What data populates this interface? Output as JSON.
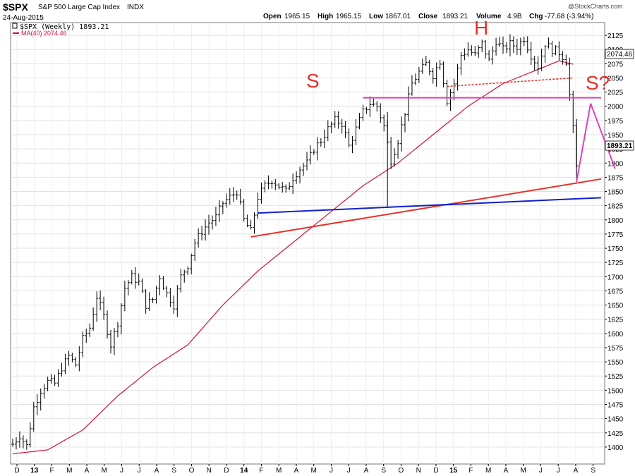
{
  "header": {
    "symbol": "$SPX",
    "name": "S&P 500 Large Cap Index",
    "exchange": "INDX",
    "date": "24-Aug-2015",
    "open_label": "Open",
    "open": "1965.15",
    "high_label": "High",
    "high": "1965.15",
    "low_label": "Low",
    "low": "1867.01",
    "close_label": "Close",
    "close": "1893.21",
    "volume_label": "Volume",
    "volume": "4.9B",
    "chg_label": "Chg",
    "chg": "-77.68 (-3.94%)",
    "watermark": "@StockCharts.com"
  },
  "legend": {
    "price_label": "$SPX (Weekly) 1893.21",
    "ma_label": "MA(40) 2074.46"
  },
  "price_tags": {
    "ma": "2074.46",
    "close": "1893.21"
  },
  "annotations": {
    "left_shoulder": "S",
    "head": "H",
    "right_shoulder": "S?"
  },
  "colors": {
    "bars": "#000000",
    "ma": "#d0103a",
    "trend_red": "#e8322a",
    "trend_blue": "#1020d0",
    "neckline": "#e040c0",
    "annotation": "#e8322a"
  },
  "chart_data": {
    "type": "ohlc-line",
    "title": "$SPX S&P 500 Large Cap Index INDX",
    "period": "Weekly",
    "y_range": [
      1380,
      2140
    ],
    "y_ticks": [
      1400,
      1425,
      1450,
      1475,
      1500,
      1525,
      1550,
      1575,
      1600,
      1625,
      1650,
      1675,
      1700,
      1725,
      1750,
      1775,
      1800,
      1825,
      1850,
      1875,
      1900,
      1925,
      1950,
      1975,
      2000,
      2025,
      2050,
      2075,
      2100,
      2125
    ],
    "x_ticks": [
      "D",
      "13",
      "F",
      "M",
      "A",
      "M",
      "J",
      "J",
      "A",
      "S",
      "O",
      "N",
      "D",
      "14",
      "F",
      "M",
      "A",
      "M",
      "J",
      "J",
      "A",
      "S",
      "O",
      "N",
      "D",
      "15",
      "F",
      "M",
      "A",
      "M",
      "J",
      "J",
      "A",
      "S"
    ],
    "price_keypoints": [
      [
        0,
        1405
      ],
      [
        2,
        1420
      ],
      [
        4,
        1402
      ],
      [
        6,
        1470
      ],
      [
        8,
        1500
      ],
      [
        10,
        1515
      ],
      [
        12,
        1512
      ],
      [
        14,
        1540
      ],
      [
        16,
        1560
      ],
      [
        18,
        1545
      ],
      [
        20,
        1590
      ],
      [
        22,
        1610
      ],
      [
        24,
        1665
      ],
      [
        26,
        1630
      ],
      [
        28,
        1580
      ],
      [
        30,
        1620
      ],
      [
        32,
        1680
      ],
      [
        34,
        1700
      ],
      [
        36,
        1690
      ],
      [
        38,
        1650
      ],
      [
        40,
        1660
      ],
      [
        42,
        1700
      ],
      [
        44,
        1670
      ],
      [
        46,
        1650
      ],
      [
        48,
        1700
      ],
      [
        50,
        1720
      ],
      [
        52,
        1760
      ],
      [
        54,
        1780
      ],
      [
        56,
        1795
      ],
      [
        58,
        1805
      ],
      [
        60,
        1830
      ],
      [
        62,
        1840
      ],
      [
        64,
        1850
      ],
      [
        66,
        1800
      ],
      [
        68,
        1780
      ],
      [
        70,
        1840
      ],
      [
        72,
        1860
      ],
      [
        74,
        1870
      ],
      [
        76,
        1860
      ],
      [
        78,
        1850
      ],
      [
        80,
        1875
      ],
      [
        82,
        1890
      ],
      [
        84,
        1900
      ],
      [
        86,
        1925
      ],
      [
        88,
        1940
      ],
      [
        90,
        1960
      ],
      [
        92,
        1975
      ],
      [
        94,
        1970
      ],
      [
        96,
        1930
      ],
      [
        98,
        1960
      ],
      [
        100,
        1990
      ],
      [
        102,
        2005
      ],
      [
        104,
        2000
      ],
      [
        106,
        1965
      ],
      [
        108,
        1905
      ],
      [
        110,
        1940
      ],
      [
        112,
        1990
      ],
      [
        114,
        2040
      ],
      [
        116,
        2060
      ],
      [
        118,
        2075
      ],
      [
        120,
        2055
      ],
      [
        122,
        2080
      ],
      [
        124,
        2010
      ],
      [
        126,
        2040
      ],
      [
        128,
        2090
      ],
      [
        130,
        2100
      ],
      [
        132,
        2090
      ],
      [
        134,
        2110
      ],
      [
        136,
        2080
      ],
      [
        138,
        2115
      ],
      [
        140,
        2100
      ],
      [
        142,
        2110
      ],
      [
        144,
        2105
      ],
      [
        146,
        2120
      ],
      [
        148,
        2090
      ],
      [
        150,
        2070
      ],
      [
        152,
        2110
      ],
      [
        154,
        2100
      ],
      [
        156,
        2095
      ],
      [
        158,
        2080
      ],
      [
        160,
        1960
      ],
      [
        161,
        1893
      ]
    ],
    "ma40_keypoints": [
      [
        0,
        1388
      ],
      [
        10,
        1395
      ],
      [
        20,
        1430
      ],
      [
        30,
        1490
      ],
      [
        40,
        1540
      ],
      [
        50,
        1580
      ],
      [
        60,
        1650
      ],
      [
        70,
        1710
      ],
      [
        80,
        1760
      ],
      [
        90,
        1810
      ],
      [
        100,
        1860
      ],
      [
        110,
        1900
      ],
      [
        120,
        1950
      ],
      [
        130,
        2000
      ],
      [
        140,
        2040
      ],
      [
        150,
        2065
      ],
      [
        156,
        2080
      ],
      [
        160,
        2074
      ]
    ],
    "trendlines": [
      {
        "color": "red",
        "from": [
          68,
          1770
        ],
        "to": [
          168,
          1872
        ]
      },
      {
        "color": "blue",
        "from": [
          70,
          1812
        ],
        "to": [
          168,
          1839
        ]
      },
      {
        "color": "magenta",
        "from": [
          100,
          2015
        ],
        "to": [
          168,
          2015
        ]
      },
      {
        "color": "red-dotted",
        "from": [
          124,
          2035
        ],
        "to": [
          160,
          2050
        ]
      },
      {
        "color": "magenta",
        "from": [
          161,
          1868
        ],
        "to": [
          165,
          2005
        ]
      },
      {
        "color": "magenta",
        "from": [
          165,
          2005
        ],
        "to": [
          172,
          1890
        ]
      }
    ],
    "x_index_range": [
      0,
      168
    ]
  }
}
